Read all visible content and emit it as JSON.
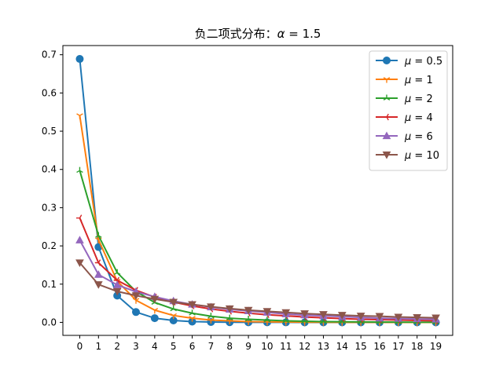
{
  "chart_data": {
    "type": "line",
    "title": "负二项式分布：α = 1.5",
    "title_parts": {
      "prefix": "负二项式分布：",
      "symbol": "α",
      "eq": " = 1.5"
    },
    "xlabel": "",
    "ylabel": "",
    "xlim": [
      -0.9,
      19.9
    ],
    "ylim": [
      -0.034,
      0.724
    ],
    "grid": false,
    "legend_position": "upper right",
    "x": [
      0,
      1,
      2,
      3,
      4,
      5,
      6,
      7,
      8,
      9,
      10,
      11,
      12,
      13,
      14,
      15,
      16,
      17,
      18,
      19
    ],
    "xticks": [
      "0",
      "1",
      "2",
      "3",
      "4",
      "5",
      "6",
      "7",
      "8",
      "9",
      "10",
      "11",
      "12",
      "13",
      "14",
      "15",
      "16",
      "17",
      "18",
      "19"
    ],
    "yticks": [
      "0.0",
      "0.1",
      "0.2",
      "0.3",
      "0.4",
      "0.5",
      "0.6",
      "0.7"
    ],
    "ytick_values": [
      0,
      0.1,
      0.2,
      0.3,
      0.4,
      0.5,
      0.6,
      0.7
    ],
    "series": [
      {
        "name": "μ = 0.5",
        "label_symbol": "μ",
        "label_value": " = 0.5",
        "color": "#1f77b4",
        "marker": "circle",
        "values": [
          0.689,
          0.197,
          0.07,
          0.027,
          0.011,
          0.005,
          0.002,
          0.001,
          0.0004,
          0.0002,
          0.0001,
          4e-05,
          2e-05,
          1e-05,
          0.0,
          0.0,
          0.0,
          0.0,
          0.0,
          0.0
        ]
      },
      {
        "name": "μ = 1",
        "label_symbol": "μ",
        "label_value": " = 1",
        "color": "#ff7f0e",
        "marker": "tri_down",
        "values": [
          0.541,
          0.216,
          0.108,
          0.058,
          0.032,
          0.018,
          0.011,
          0.006,
          0.004,
          0.002,
          0.0014,
          0.0008,
          0.0005,
          0.0003,
          0.0002,
          0.0001,
          0.0001,
          0.0,
          0.0,
          0.0
        ]
      },
      {
        "name": "μ = 2",
        "label_symbol": "μ",
        "label_value": " = 2",
        "color": "#2ca02c",
        "marker": "tri_up",
        "values": [
          0.397,
          0.227,
          0.13,
          0.081,
          0.052,
          0.035,
          0.024,
          0.016,
          0.011,
          0.008,
          0.006,
          0.004,
          0.003,
          0.002,
          0.0016,
          0.0012,
          0.0009,
          0.0007,
          0.0005,
          0.0004
        ]
      },
      {
        "name": "μ = 4",
        "label_symbol": "μ",
        "label_value": " = 4",
        "color": "#d62728",
        "marker": "tri_left",
        "values": [
          0.273,
          0.156,
          0.11,
          0.084,
          0.066,
          0.053,
          0.043,
          0.035,
          0.029,
          0.024,
          0.02,
          0.017,
          0.014,
          0.012,
          0.01,
          0.008,
          0.007,
          0.006,
          0.005,
          0.004
        ]
      },
      {
        "name": "μ = 6",
        "label_symbol": "μ",
        "label_value": " = 6",
        "color": "#9467bd",
        "marker": "triangle_up",
        "values": [
          0.215,
          0.125,
          0.098,
          0.08,
          0.067,
          0.056,
          0.047,
          0.04,
          0.034,
          0.03,
          0.026,
          0.022,
          0.019,
          0.017,
          0.015,
          0.013,
          0.011,
          0.01,
          0.009,
          0.008
        ]
      },
      {
        "name": "μ = 10",
        "label_symbol": "μ",
        "label_value": " = 10",
        "color": "#8c564b",
        "marker": "triangle_down",
        "values": [
          0.156,
          0.099,
          0.081,
          0.07,
          0.061,
          0.053,
          0.047,
          0.041,
          0.036,
          0.032,
          0.029,
          0.026,
          0.023,
          0.021,
          0.019,
          0.017,
          0.016,
          0.014,
          0.013,
          0.012
        ]
      }
    ]
  }
}
